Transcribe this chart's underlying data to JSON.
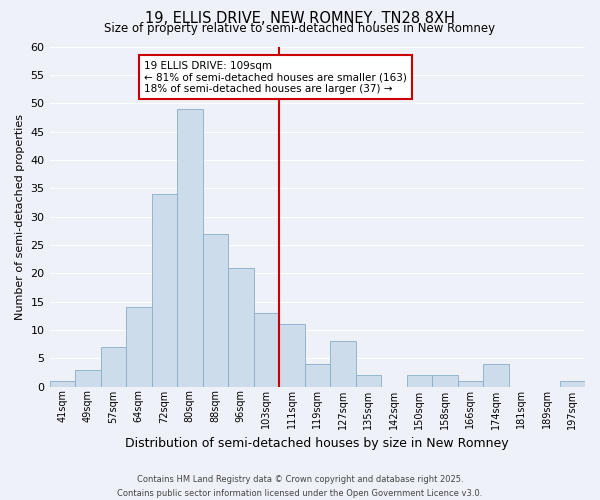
{
  "title": "19, ELLIS DRIVE, NEW ROMNEY, TN28 8XH",
  "subtitle": "Size of property relative to semi-detached houses in New Romney",
  "xlabel": "Distribution of semi-detached houses by size in New Romney",
  "ylabel": "Number of semi-detached properties",
  "bar_labels": [
    "41sqm",
    "49sqm",
    "57sqm",
    "64sqm",
    "72sqm",
    "80sqm",
    "88sqm",
    "96sqm",
    "103sqm",
    "111sqm",
    "119sqm",
    "127sqm",
    "135sqm",
    "142sqm",
    "150sqm",
    "158sqm",
    "166sqm",
    "174sqm",
    "181sqm",
    "189sqm",
    "197sqm"
  ],
  "bar_values": [
    1,
    3,
    7,
    14,
    34,
    49,
    27,
    21,
    13,
    11,
    4,
    8,
    2,
    0,
    2,
    2,
    1,
    4,
    0,
    0,
    1
  ],
  "bar_color": "#ccdcea",
  "bar_edgecolor": "#88aec8",
  "background_color": "#eef2f8",
  "grid_color": "#ffffff",
  "vline_x": 8.5,
  "vline_color": "#cc0000",
  "annotation_title": "19 ELLIS DRIVE: 109sqm",
  "annotation_line1": "← 81% of semi-detached houses are smaller (163)",
  "annotation_line2": "18% of semi-detached houses are larger (37) →",
  "annotation_box_facecolor": "#ffffff",
  "annotation_box_edgecolor": "#cc0000",
  "footer_line1": "Contains HM Land Registry data © Crown copyright and database right 2025.",
  "footer_line2": "Contains public sector information licensed under the Open Government Licence v3.0.",
  "ylim": [
    0,
    60
  ],
  "yticks": [
    0,
    5,
    10,
    15,
    20,
    25,
    30,
    35,
    40,
    45,
    50,
    55,
    60
  ]
}
